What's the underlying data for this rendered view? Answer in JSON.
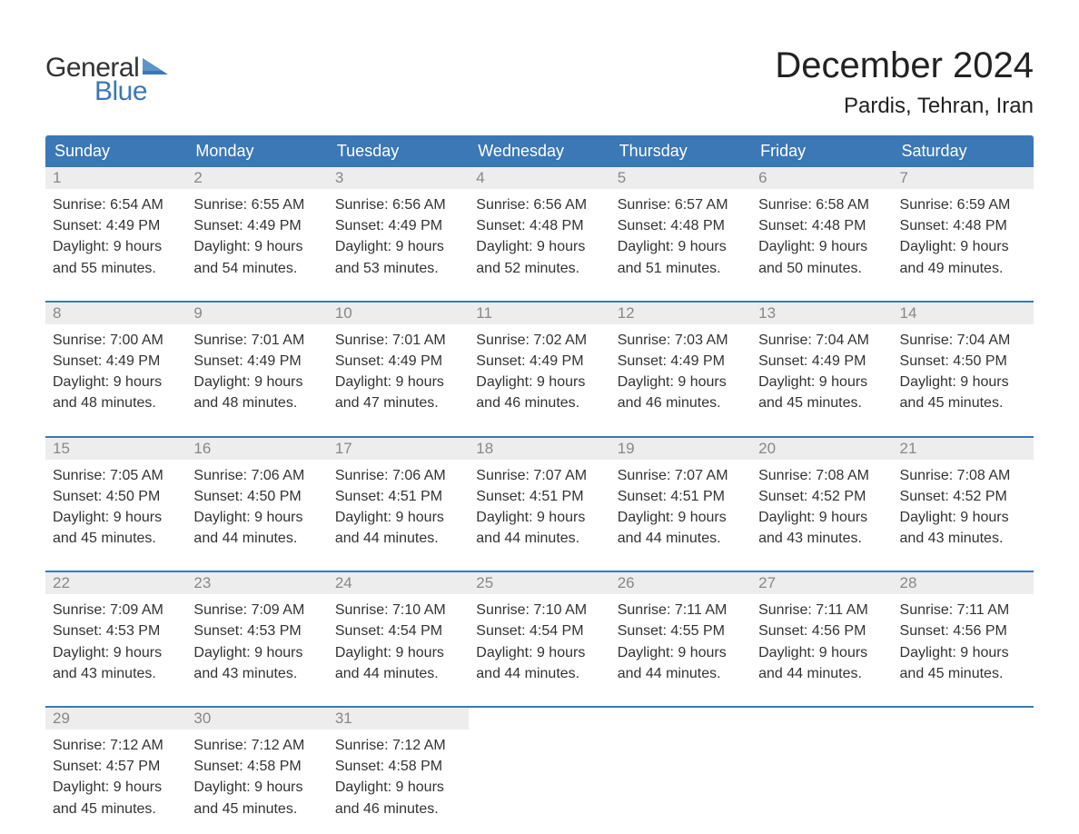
{
  "logo": {
    "text1": "General",
    "text2": "Blue",
    "flag_color": "#3b78b5"
  },
  "title": "December 2024",
  "location": "Pardis, Tehran, Iran",
  "colors": {
    "header_bg": "#3b78b5",
    "daynum_bg": "#ededed",
    "daynum_text": "#888888",
    "text": "#333333",
    "week_border": "#3b78b5"
  },
  "weekdays": [
    "Sunday",
    "Monday",
    "Tuesday",
    "Wednesday",
    "Thursday",
    "Friday",
    "Saturday"
  ],
  "days": [
    {
      "n": "1",
      "sunrise": "Sunrise: 6:54 AM",
      "sunset": "Sunset: 4:49 PM",
      "d1": "Daylight: 9 hours",
      "d2": "and 55 minutes."
    },
    {
      "n": "2",
      "sunrise": "Sunrise: 6:55 AM",
      "sunset": "Sunset: 4:49 PM",
      "d1": "Daylight: 9 hours",
      "d2": "and 54 minutes."
    },
    {
      "n": "3",
      "sunrise": "Sunrise: 6:56 AM",
      "sunset": "Sunset: 4:49 PM",
      "d1": "Daylight: 9 hours",
      "d2": "and 53 minutes."
    },
    {
      "n": "4",
      "sunrise": "Sunrise: 6:56 AM",
      "sunset": "Sunset: 4:48 PM",
      "d1": "Daylight: 9 hours",
      "d2": "and 52 minutes."
    },
    {
      "n": "5",
      "sunrise": "Sunrise: 6:57 AM",
      "sunset": "Sunset: 4:48 PM",
      "d1": "Daylight: 9 hours",
      "d2": "and 51 minutes."
    },
    {
      "n": "6",
      "sunrise": "Sunrise: 6:58 AM",
      "sunset": "Sunset: 4:48 PM",
      "d1": "Daylight: 9 hours",
      "d2": "and 50 minutes."
    },
    {
      "n": "7",
      "sunrise": "Sunrise: 6:59 AM",
      "sunset": "Sunset: 4:48 PM",
      "d1": "Daylight: 9 hours",
      "d2": "and 49 minutes."
    },
    {
      "n": "8",
      "sunrise": "Sunrise: 7:00 AM",
      "sunset": "Sunset: 4:49 PM",
      "d1": "Daylight: 9 hours",
      "d2": "and 48 minutes."
    },
    {
      "n": "9",
      "sunrise": "Sunrise: 7:01 AM",
      "sunset": "Sunset: 4:49 PM",
      "d1": "Daylight: 9 hours",
      "d2": "and 48 minutes."
    },
    {
      "n": "10",
      "sunrise": "Sunrise: 7:01 AM",
      "sunset": "Sunset: 4:49 PM",
      "d1": "Daylight: 9 hours",
      "d2": "and 47 minutes."
    },
    {
      "n": "11",
      "sunrise": "Sunrise: 7:02 AM",
      "sunset": "Sunset: 4:49 PM",
      "d1": "Daylight: 9 hours",
      "d2": "and 46 minutes."
    },
    {
      "n": "12",
      "sunrise": "Sunrise: 7:03 AM",
      "sunset": "Sunset: 4:49 PM",
      "d1": "Daylight: 9 hours",
      "d2": "and 46 minutes."
    },
    {
      "n": "13",
      "sunrise": "Sunrise: 7:04 AM",
      "sunset": "Sunset: 4:49 PM",
      "d1": "Daylight: 9 hours",
      "d2": "and 45 minutes."
    },
    {
      "n": "14",
      "sunrise": "Sunrise: 7:04 AM",
      "sunset": "Sunset: 4:50 PM",
      "d1": "Daylight: 9 hours",
      "d2": "and 45 minutes."
    },
    {
      "n": "15",
      "sunrise": "Sunrise: 7:05 AM",
      "sunset": "Sunset: 4:50 PM",
      "d1": "Daylight: 9 hours",
      "d2": "and 45 minutes."
    },
    {
      "n": "16",
      "sunrise": "Sunrise: 7:06 AM",
      "sunset": "Sunset: 4:50 PM",
      "d1": "Daylight: 9 hours",
      "d2": "and 44 minutes."
    },
    {
      "n": "17",
      "sunrise": "Sunrise: 7:06 AM",
      "sunset": "Sunset: 4:51 PM",
      "d1": "Daylight: 9 hours",
      "d2": "and 44 minutes."
    },
    {
      "n": "18",
      "sunrise": "Sunrise: 7:07 AM",
      "sunset": "Sunset: 4:51 PM",
      "d1": "Daylight: 9 hours",
      "d2": "and 44 minutes."
    },
    {
      "n": "19",
      "sunrise": "Sunrise: 7:07 AM",
      "sunset": "Sunset: 4:51 PM",
      "d1": "Daylight: 9 hours",
      "d2": "and 44 minutes."
    },
    {
      "n": "20",
      "sunrise": "Sunrise: 7:08 AM",
      "sunset": "Sunset: 4:52 PM",
      "d1": "Daylight: 9 hours",
      "d2": "and 43 minutes."
    },
    {
      "n": "21",
      "sunrise": "Sunrise: 7:08 AM",
      "sunset": "Sunset: 4:52 PM",
      "d1": "Daylight: 9 hours",
      "d2": "and 43 minutes."
    },
    {
      "n": "22",
      "sunrise": "Sunrise: 7:09 AM",
      "sunset": "Sunset: 4:53 PM",
      "d1": "Daylight: 9 hours",
      "d2": "and 43 minutes."
    },
    {
      "n": "23",
      "sunrise": "Sunrise: 7:09 AM",
      "sunset": "Sunset: 4:53 PM",
      "d1": "Daylight: 9 hours",
      "d2": "and 43 minutes."
    },
    {
      "n": "24",
      "sunrise": "Sunrise: 7:10 AM",
      "sunset": "Sunset: 4:54 PM",
      "d1": "Daylight: 9 hours",
      "d2": "and 44 minutes."
    },
    {
      "n": "25",
      "sunrise": "Sunrise: 7:10 AM",
      "sunset": "Sunset: 4:54 PM",
      "d1": "Daylight: 9 hours",
      "d2": "and 44 minutes."
    },
    {
      "n": "26",
      "sunrise": "Sunrise: 7:11 AM",
      "sunset": "Sunset: 4:55 PM",
      "d1": "Daylight: 9 hours",
      "d2": "and 44 minutes."
    },
    {
      "n": "27",
      "sunrise": "Sunrise: 7:11 AM",
      "sunset": "Sunset: 4:56 PM",
      "d1": "Daylight: 9 hours",
      "d2": "and 44 minutes."
    },
    {
      "n": "28",
      "sunrise": "Sunrise: 7:11 AM",
      "sunset": "Sunset: 4:56 PM",
      "d1": "Daylight: 9 hours",
      "d2": "and 45 minutes."
    },
    {
      "n": "29",
      "sunrise": "Sunrise: 7:12 AM",
      "sunset": "Sunset: 4:57 PM",
      "d1": "Daylight: 9 hours",
      "d2": "and 45 minutes."
    },
    {
      "n": "30",
      "sunrise": "Sunrise: 7:12 AM",
      "sunset": "Sunset: 4:58 PM",
      "d1": "Daylight: 9 hours",
      "d2": "and 45 minutes."
    },
    {
      "n": "31",
      "sunrise": "Sunrise: 7:12 AM",
      "sunset": "Sunset: 4:58 PM",
      "d1": "Daylight: 9 hours",
      "d2": "and 46 minutes."
    }
  ]
}
